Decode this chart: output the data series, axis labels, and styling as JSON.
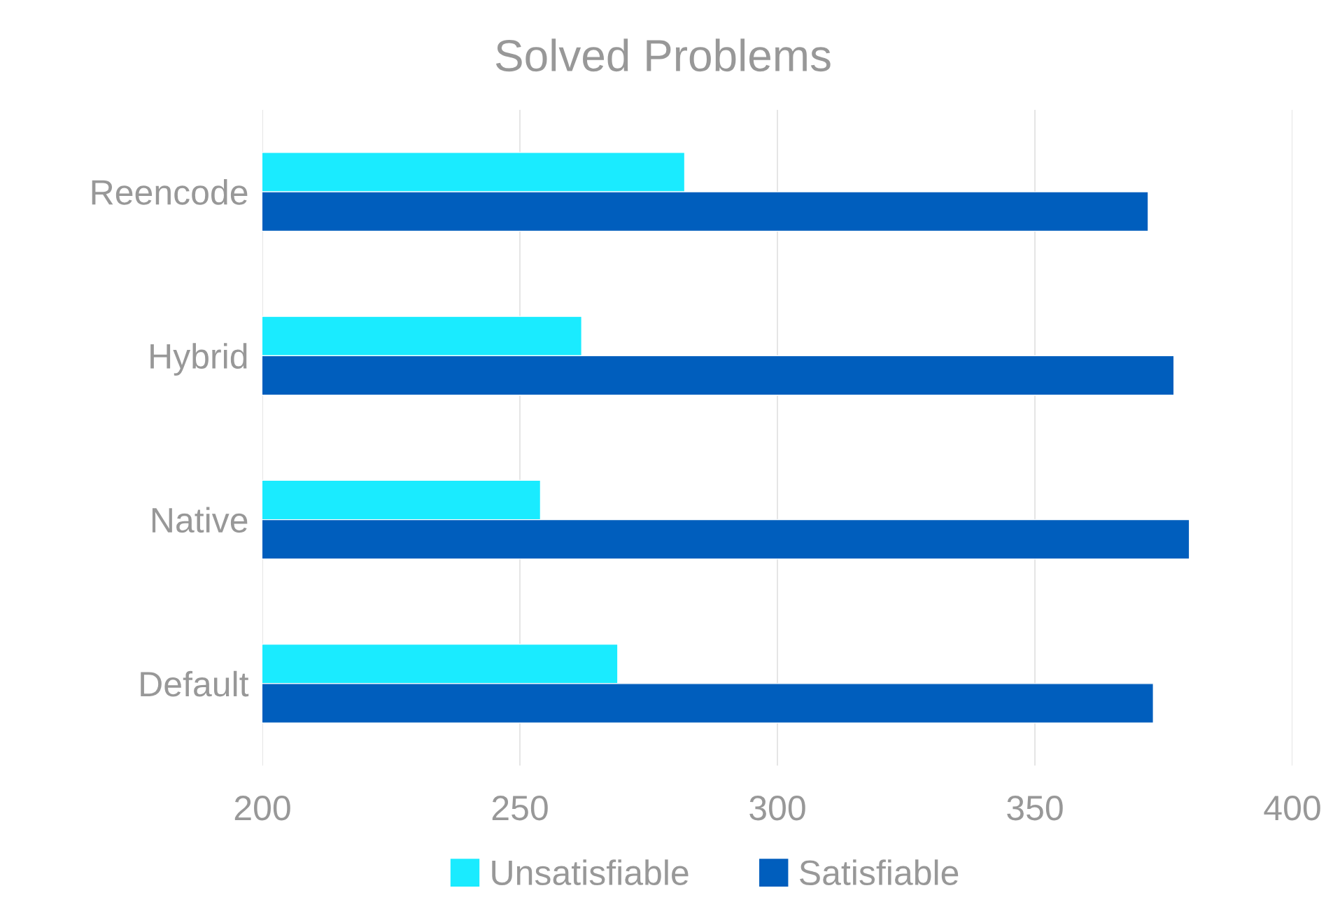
{
  "chart_data": {
    "type": "bar",
    "orientation": "horizontal",
    "title": "Solved Problems",
    "categories": [
      "Reencode",
      "Hybrid",
      "Native",
      "Default"
    ],
    "series": [
      {
        "name": "Unsatisfiable",
        "color": "#1aebff",
        "values": [
          282,
          262,
          254,
          269
        ]
      },
      {
        "name": "Satisfiable",
        "color": "#005ebd",
        "values": [
          372,
          377,
          380,
          373
        ]
      }
    ],
    "xlim": [
      200,
      400
    ],
    "xticks": [
      200,
      250,
      300,
      350,
      400
    ],
    "grid": "x",
    "legend": "bottom"
  }
}
